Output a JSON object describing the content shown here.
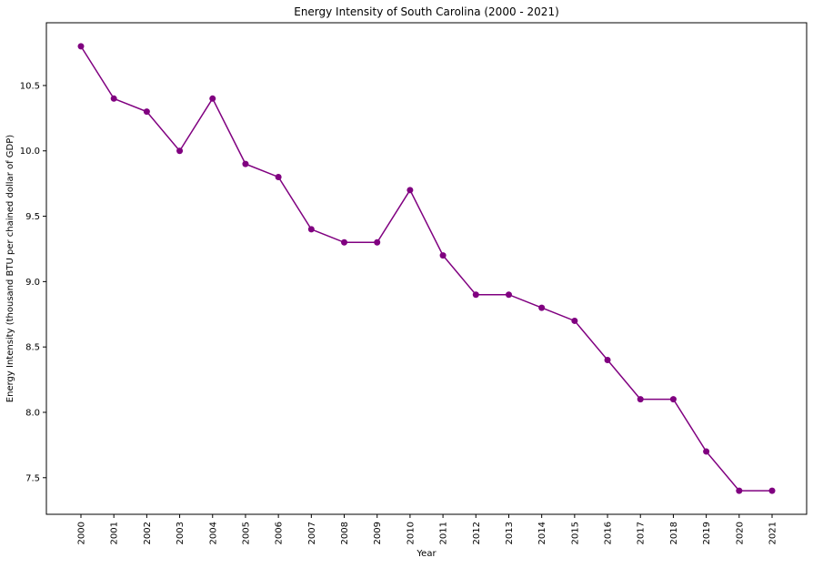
{
  "chart_data": {
    "type": "line",
    "title": "Energy Intensity of South Carolina (2000 - 2021)",
    "xlabel": "Year",
    "ylabel": "Energy Intensity (thousand BTU per chained dollar of GDP)",
    "x": [
      "2000",
      "2001",
      "2002",
      "2003",
      "2004",
      "2005",
      "2006",
      "2007",
      "2008",
      "2009",
      "2010",
      "2011",
      "2012",
      "2013",
      "2014",
      "2015",
      "2016",
      "2017",
      "2018",
      "2019",
      "2020",
      "2021"
    ],
    "series": [
      {
        "values": [
          10.8,
          10.4,
          10.3,
          10.0,
          10.4,
          9.9,
          9.8,
          9.4,
          9.3,
          9.3,
          9.7,
          9.2,
          8.9,
          8.9,
          8.8,
          8.7,
          8.4,
          8.1,
          8.1,
          7.7,
          7.4,
          7.4
        ],
        "color": "#800080",
        "marker": "circle"
      }
    ],
    "yticks": [
      "7.5",
      "8.0",
      "8.5",
      "9.0",
      "9.5",
      "10.0",
      "10.5"
    ],
    "ylim": [
      7.22,
      10.98
    ],
    "grid": false,
    "legend": "none",
    "x_tick_rotation": "vertical"
  }
}
